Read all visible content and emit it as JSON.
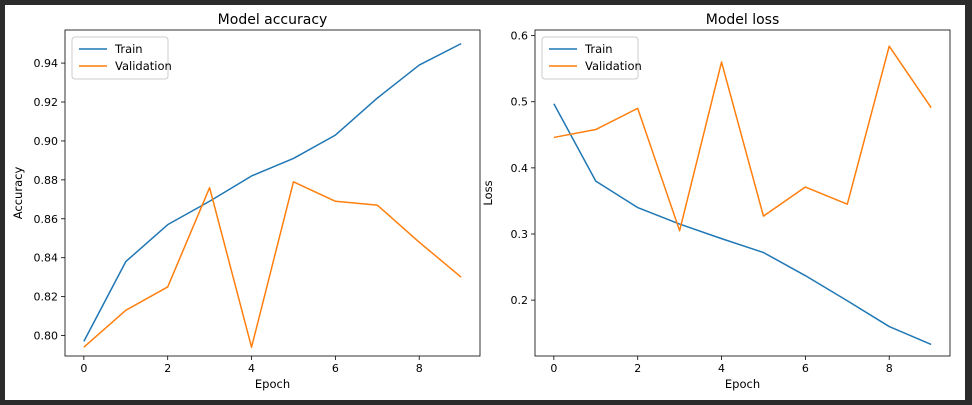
{
  "chart_data": [
    {
      "type": "line",
      "title": "Model accuracy",
      "xlabel": "Epoch",
      "ylabel": "Accuracy",
      "xlim": [
        -0.45,
        9.45
      ],
      "ylim": [
        0.7895,
        0.957
      ],
      "xticks": [
        0,
        2,
        4,
        6,
        8
      ],
      "yticks": [
        0.8,
        0.82,
        0.84,
        0.86,
        0.88,
        0.9,
        0.92,
        0.94
      ],
      "ytick_labels": [
        "0.80",
        "0.82",
        "0.84",
        "0.86",
        "0.88",
        "0.90",
        "0.92",
        "0.94"
      ],
      "legend_position": "top-left",
      "x": [
        0,
        1,
        2,
        3,
        4,
        5,
        6,
        7,
        8,
        9
      ],
      "series": [
        {
          "name": "Train",
          "color": "#1f77b4",
          "values": [
            0.797,
            0.838,
            0.857,
            0.869,
            0.882,
            0.891,
            0.903,
            0.922,
            0.939,
            0.95
          ]
        },
        {
          "name": "Validation",
          "color": "#ff7f0e",
          "values": [
            0.794,
            0.813,
            0.825,
            0.876,
            0.794,
            0.879,
            0.869,
            0.867,
            0.848,
            0.83
          ]
        }
      ]
    },
    {
      "type": "line",
      "title": "Model loss",
      "xlabel": "Epoch",
      "ylabel": "Loss",
      "xlim": [
        -0.45,
        9.45
      ],
      "ylim": [
        0.1155,
        0.6085
      ],
      "xticks": [
        0,
        2,
        4,
        6,
        8
      ],
      "yticks": [
        0.2,
        0.3,
        0.4,
        0.5,
        0.6
      ],
      "ytick_labels": [
        "0.2",
        "0.3",
        "0.4",
        "0.5",
        "0.6"
      ],
      "legend_position": "top-left",
      "x": [
        0,
        1,
        2,
        3,
        4,
        5,
        6,
        7,
        8,
        9
      ],
      "series": [
        {
          "name": "Train",
          "color": "#1f77b4",
          "values": [
            0.497,
            0.38,
            0.34,
            0.315,
            0.293,
            0.272,
            0.237,
            0.199,
            0.16,
            0.133
          ]
        },
        {
          "name": "Validation",
          "color": "#ff7f0e",
          "values": [
            0.446,
            0.458,
            0.49,
            0.305,
            0.56,
            0.327,
            0.371,
            0.345,
            0.584,
            0.491
          ]
        }
      ]
    }
  ]
}
